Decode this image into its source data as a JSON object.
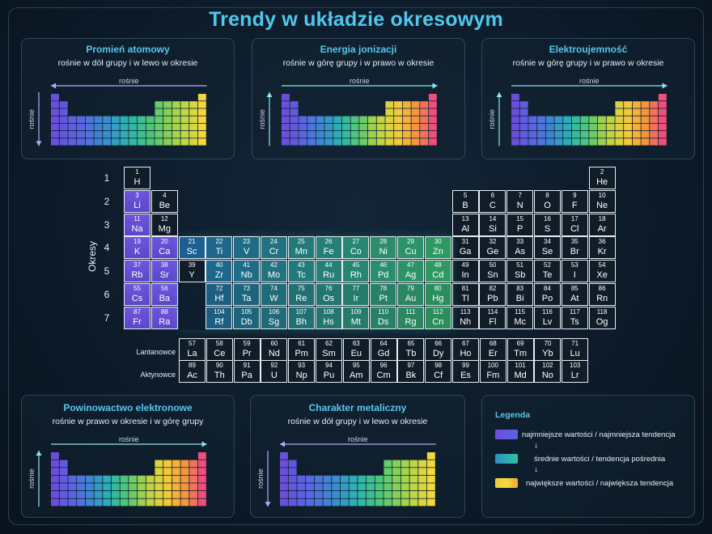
{
  "title": "Trendy  w układzie okresowym",
  "panels": [
    {
      "key": "radius",
      "title": "Promień atomowy",
      "subtitle": "rośnie w dół grupy i w lewo w okresie",
      "h_arrow": "left",
      "v_arrow": "down",
      "h_label": "rośnie",
      "v_label": "rośnie",
      "palette": "radius"
    },
    {
      "key": "ionization",
      "title": "Energia jonizacji",
      "subtitle": "rośnie w górę grupy i w prawo w okresie",
      "h_arrow": "right",
      "v_arrow": "up",
      "h_label": "rośnie",
      "v_label": "rośnie",
      "palette": "warm"
    },
    {
      "key": "electronegativity",
      "title": "Elektroujemność",
      "subtitle": "rośnie w górę grupy i w prawo w okresie",
      "h_arrow": "right",
      "v_arrow": "up",
      "h_label": "rośnie",
      "v_label": "rośnie",
      "palette": "warm"
    },
    {
      "key": "affinity",
      "title": "Powinowactwo elektronowe",
      "subtitle": "rośnie w prawo w okresie i w górę grupy",
      "h_arrow": "right",
      "v_arrow": "up",
      "h_label": "rośnie",
      "v_label": "rośnie",
      "palette": "warm"
    },
    {
      "key": "metallic",
      "title": "Charakter metaliczny",
      "subtitle": "rośnie w dół grupy i w lewo w okresie",
      "h_arrow": "left",
      "v_arrow": "down",
      "h_label": "rośnie",
      "v_label": "rośnie",
      "palette": "radius"
    }
  ],
  "periods_label": "Okresy",
  "period_numbers": [
    "1",
    "2",
    "3",
    "4",
    "5",
    "6",
    "7"
  ],
  "lanthanides_label": "Lantanowce",
  "actinides_label": "Aktynowce",
  "legend": {
    "title": "Legenda",
    "items": [
      "najmniejsze wartości / najmniejsza tendencja",
      "średnie wartości / tendencja pośrednia",
      "największe wartości / największa tendencja"
    ]
  },
  "colors": {
    "title": "#4fc8ec",
    "s_block": "#6b4fd6",
    "d_block": "#1a7f86",
    "p_block": "#0f1c29",
    "low": "#6f4fe0",
    "mid": "#2bbfa6",
    "high": "#f2d23a"
  },
  "elements": [
    {
      "n": "1",
      "s": "H",
      "p": 1,
      "g": 1,
      "b": "s"
    },
    {
      "n": "2",
      "s": "He",
      "p": 1,
      "g": 18,
      "b": "p"
    },
    {
      "n": "3",
      "s": "Li",
      "p": 2,
      "g": 1,
      "b": "s"
    },
    {
      "n": "4",
      "s": "Be",
      "p": 2,
      "g": 2,
      "b": "p"
    },
    {
      "n": "5",
      "s": "B",
      "p": 2,
      "g": 13,
      "b": "p"
    },
    {
      "n": "6",
      "s": "C",
      "p": 2,
      "g": 14,
      "b": "p"
    },
    {
      "n": "7",
      "s": "N",
      "p": 2,
      "g": 15,
      "b": "p"
    },
    {
      "n": "8",
      "s": "O",
      "p": 2,
      "g": 16,
      "b": "p"
    },
    {
      "n": "9",
      "s": "F",
      "p": 2,
      "g": 17,
      "b": "p"
    },
    {
      "n": "10",
      "s": "Ne",
      "p": 2,
      "g": 18,
      "b": "p"
    },
    {
      "n": "11",
      "s": "Na",
      "p": 3,
      "g": 1,
      "b": "s"
    },
    {
      "n": "12",
      "s": "Mg",
      "p": 3,
      "g": 2,
      "b": "p"
    },
    {
      "n": "13",
      "s": "Al",
      "p": 3,
      "g": 13,
      "b": "p"
    },
    {
      "n": "14",
      "s": "Si",
      "p": 3,
      "g": 14,
      "b": "p"
    },
    {
      "n": "15",
      "s": "P",
      "p": 3,
      "g": 15,
      "b": "p"
    },
    {
      "n": "16",
      "s": "S",
      "p": 3,
      "g": 16,
      "b": "p"
    },
    {
      "n": "17",
      "s": "Cl",
      "p": 3,
      "g": 17,
      "b": "p"
    },
    {
      "n": "18",
      "s": "Ar",
      "p": 3,
      "g": 18,
      "b": "p"
    },
    {
      "n": "19",
      "s": "K",
      "p": 4,
      "g": 1,
      "b": "s"
    },
    {
      "n": "20",
      "s": "Ca",
      "p": 4,
      "g": 2,
      "b": "s"
    },
    {
      "n": "21",
      "s": "Sc",
      "p": 4,
      "g": 3,
      "b": "d"
    },
    {
      "n": "22",
      "s": "Ti",
      "p": 4,
      "g": 4,
      "b": "d"
    },
    {
      "n": "23",
      "s": "V",
      "p": 4,
      "g": 5,
      "b": "d"
    },
    {
      "n": "24",
      "s": "Cr",
      "p": 4,
      "g": 6,
      "b": "d"
    },
    {
      "n": "25",
      "s": "Mn",
      "p": 4,
      "g": 7,
      "b": "d"
    },
    {
      "n": "26",
      "s": "Fe",
      "p": 4,
      "g": 8,
      "b": "d"
    },
    {
      "n": "27",
      "s": "Co",
      "p": 4,
      "g": 9,
      "b": "d"
    },
    {
      "n": "28",
      "s": "Ni",
      "p": 4,
      "g": 10,
      "b": "d"
    },
    {
      "n": "29",
      "s": "Cu",
      "p": 4,
      "g": 11,
      "b": "d"
    },
    {
      "n": "30",
      "s": "Zn",
      "p": 4,
      "g": 12,
      "b": "d"
    },
    {
      "n": "31",
      "s": "Ga",
      "p": 4,
      "g": 13,
      "b": "p"
    },
    {
      "n": "32",
      "s": "Ge",
      "p": 4,
      "g": 14,
      "b": "p"
    },
    {
      "n": "33",
      "s": "As",
      "p": 4,
      "g": 15,
      "b": "p"
    },
    {
      "n": "34",
      "s": "Se",
      "p": 4,
      "g": 16,
      "b": "p"
    },
    {
      "n": "35",
      "s": "Br",
      "p": 4,
      "g": 17,
      "b": "p"
    },
    {
      "n": "36",
      "s": "Kr",
      "p": 4,
      "g": 18,
      "b": "p"
    },
    {
      "n": "37",
      "s": "Rb",
      "p": 5,
      "g": 1,
      "b": "s"
    },
    {
      "n": "38",
      "s": "Sr",
      "p": 5,
      "g": 2,
      "b": "s"
    },
    {
      "n": "39",
      "s": "Y",
      "p": 5,
      "g": 3,
      "b": "p"
    },
    {
      "n": "40",
      "s": "Zr",
      "p": 5,
      "g": 4,
      "b": "d"
    },
    {
      "n": "41",
      "s": "Nb",
      "p": 5,
      "g": 5,
      "b": "d"
    },
    {
      "n": "42",
      "s": "Mo",
      "p": 5,
      "g": 6,
      "b": "d"
    },
    {
      "n": "43",
      "s": "Tc",
      "p": 5,
      "g": 7,
      "b": "d"
    },
    {
      "n": "44",
      "s": "Ru",
      "p": 5,
      "g": 8,
      "b": "d"
    },
    {
      "n": "45",
      "s": "Rh",
      "p": 5,
      "g": 9,
      "b": "d"
    },
    {
      "n": "46",
      "s": "Pd",
      "p": 5,
      "g": 10,
      "b": "d"
    },
    {
      "n": "47",
      "s": "Ag",
      "p": 5,
      "g": 11,
      "b": "d"
    },
    {
      "n": "48",
      "s": "Cd",
      "p": 5,
      "g": 12,
      "b": "d"
    },
    {
      "n": "49",
      "s": "In",
      "p": 5,
      "g": 13,
      "b": "p"
    },
    {
      "n": "50",
      "s": "Sn",
      "p": 5,
      "g": 14,
      "b": "p"
    },
    {
      "n": "51",
      "s": "Sb",
      "p": 5,
      "g": 15,
      "b": "p"
    },
    {
      "n": "52",
      "s": "Te",
      "p": 5,
      "g": 16,
      "b": "p"
    },
    {
      "n": "53",
      "s": "I",
      "p": 5,
      "g": 17,
      "b": "p"
    },
    {
      "n": "54",
      "s": "Xe",
      "p": 5,
      "g": 18,
      "b": "p"
    },
    {
      "n": "55",
      "s": "Cs",
      "p": 6,
      "g": 1,
      "b": "s"
    },
    {
      "n": "56",
      "s": "Ba",
      "p": 6,
      "g": 2,
      "b": "s"
    },
    {
      "n": "72",
      "s": "Hf",
      "p": 6,
      "g": 4,
      "b": "d"
    },
    {
      "n": "73",
      "s": "Ta",
      "p": 6,
      "g": 5,
      "b": "d"
    },
    {
      "n": "74",
      "s": "W",
      "p": 6,
      "g": 6,
      "b": "d"
    },
    {
      "n": "75",
      "s": "Re",
      "p": 6,
      "g": 7,
      "b": "d"
    },
    {
      "n": "76",
      "s": "Os",
      "p": 6,
      "g": 8,
      "b": "d"
    },
    {
      "n": "77",
      "s": "Ir",
      "p": 6,
      "g": 9,
      "b": "d"
    },
    {
      "n": "78",
      "s": "Pt",
      "p": 6,
      "g": 10,
      "b": "d"
    },
    {
      "n": "79",
      "s": "Au",
      "p": 6,
      "g": 11,
      "b": "d"
    },
    {
      "n": "80",
      "s": "Hg",
      "p": 6,
      "g": 12,
      "b": "d"
    },
    {
      "n": "81",
      "s": "Tl",
      "p": 6,
      "g": 13,
      "b": "p"
    },
    {
      "n": "82",
      "s": "Pb",
      "p": 6,
      "g": 14,
      "b": "p"
    },
    {
      "n": "83",
      "s": "Bi",
      "p": 6,
      "g": 15,
      "b": "p"
    },
    {
      "n": "84",
      "s": "Po",
      "p": 6,
      "g": 16,
      "b": "p"
    },
    {
      "n": "85",
      "s": "At",
      "p": 6,
      "g": 17,
      "b": "p"
    },
    {
      "n": "86",
      "s": "Rn",
      "p": 6,
      "g": 18,
      "b": "p"
    },
    {
      "n": "87",
      "s": "Fr",
      "p": 7,
      "g": 1,
      "b": "s"
    },
    {
      "n": "88",
      "s": "Ra",
      "p": 7,
      "g": 2,
      "b": "s"
    },
    {
      "n": "104",
      "s": "Rf",
      "p": 7,
      "g": 4,
      "b": "d"
    },
    {
      "n": "105",
      "s": "Db",
      "p": 7,
      "g": 5,
      "b": "d"
    },
    {
      "n": "106",
      "s": "Sg",
      "p": 7,
      "g": 6,
      "b": "d"
    },
    {
      "n": "107",
      "s": "Bh",
      "p": 7,
      "g": 7,
      "b": "d"
    },
    {
      "n": "108",
      "s": "Hs",
      "p": 7,
      "g": 8,
      "b": "d"
    },
    {
      "n": "109",
      "s": "Mt",
      "p": 7,
      "g": 9,
      "b": "d"
    },
    {
      "n": "110",
      "s": "Ds",
      "p": 7,
      "g": 10,
      "b": "d"
    },
    {
      "n": "111",
      "s": "Rg",
      "p": 7,
      "g": 11,
      "b": "d"
    },
    {
      "n": "112",
      "s": "Cn",
      "p": 7,
      "g": 12,
      "b": "d"
    },
    {
      "n": "113",
      "s": "Nh",
      "p": 7,
      "g": 13,
      "b": "p"
    },
    {
      "n": "114",
      "s": "Fl",
      "p": 7,
      "g": 14,
      "b": "p"
    },
    {
      "n": "115",
      "s": "Mc",
      "p": 7,
      "g": 15,
      "b": "p"
    },
    {
      "n": "116",
      "s": "Lv",
      "p": 7,
      "g": 16,
      "b": "p"
    },
    {
      "n": "117",
      "s": "Ts",
      "p": 7,
      "g": 17,
      "b": "p"
    },
    {
      "n": "118",
      "s": "Og",
      "p": 7,
      "g": 18,
      "b": "p"
    }
  ],
  "lanthanides": [
    {
      "n": "57",
      "s": "La"
    },
    {
      "n": "58",
      "s": "Ce"
    },
    {
      "n": "59",
      "s": "Pr"
    },
    {
      "n": "60",
      "s": "Nd"
    },
    {
      "n": "61",
      "s": "Pm"
    },
    {
      "n": "62",
      "s": "Sm"
    },
    {
      "n": "63",
      "s": "Eu"
    },
    {
      "n": "64",
      "s": "Gd"
    },
    {
      "n": "65",
      "s": "Tb"
    },
    {
      "n": "66",
      "s": "Dy"
    },
    {
      "n": "67",
      "s": "Ho"
    },
    {
      "n": "68",
      "s": "Er"
    },
    {
      "n": "69",
      "s": "Tm"
    },
    {
      "n": "70",
      "s": "Yb"
    },
    {
      "n": "71",
      "s": "Lu"
    }
  ],
  "actinides": [
    {
      "n": "89",
      "s": "Ac"
    },
    {
      "n": "90",
      "s": "Th"
    },
    {
      "n": "91",
      "s": "Pa"
    },
    {
      "n": "92",
      "s": "U"
    },
    {
      "n": "93",
      "s": "Np"
    },
    {
      "n": "94",
      "s": "Pu"
    },
    {
      "n": "95",
      "s": "Am"
    },
    {
      "n": "96",
      "s": "Cm"
    },
    {
      "n": "97",
      "s": "Bk"
    },
    {
      "n": "98",
      "s": "Cf"
    },
    {
      "n": "99",
      "s": "Es"
    },
    {
      "n": "100",
      "s": "Fm"
    },
    {
      "n": "101",
      "s": "Md"
    },
    {
      "n": "102",
      "s": "No"
    },
    {
      "n": "103",
      "s": "Lr"
    }
  ]
}
